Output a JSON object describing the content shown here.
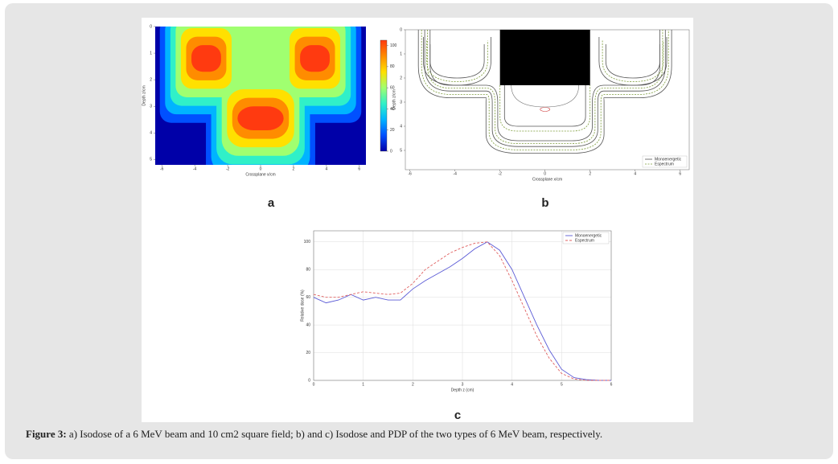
{
  "panel_a": {
    "label": "a",
    "chart_data": {
      "type": "heatmap",
      "x_label": "Crossplane x/cm",
      "y_label": "Depth z/cm",
      "xlim": [
        -6.4,
        6.4
      ],
      "xticks": [
        -6,
        -4,
        -2,
        0,
        2,
        4,
        6
      ],
      "ylim": [
        0,
        5.2
      ],
      "yticks": [
        0,
        1,
        2,
        3,
        4,
        5
      ],
      "colorbar_lim": [
        0,
        105
      ],
      "colorbar_ticks": [
        0,
        20,
        40,
        60,
        80,
        100
      ],
      "colormap": [
        "#0000a8",
        "#0050ff",
        "#00b4ff",
        "#30f0c8",
        "#a0ff70",
        "#ffe000",
        "#ff8c00",
        "#ff3a10"
      ]
    }
  },
  "panel_b": {
    "label": "b",
    "chart_data": {
      "type": "contour",
      "x_label": "Crossplane x/cm",
      "y_label": "Depth z/cm",
      "xlim": [
        -6.2,
        6.4
      ],
      "xticks": [
        -6,
        -4,
        -2,
        0,
        2,
        4,
        6
      ],
      "ylim": [
        0,
        5.8
      ],
      "yticks": [
        0,
        1,
        2,
        3,
        4,
        5
      ],
      "series": [
        {
          "name": "Monoenergetic",
          "color": "#555555"
        },
        {
          "name": "Espectrum",
          "color": "#7c9c3a"
        }
      ],
      "legend": "lower right"
    }
  },
  "panel_c": {
    "label": "c",
    "chart_data": {
      "type": "line",
      "x_label": "Depth z (cm)",
      "y_label": "Relative dose (%)",
      "x": [
        0,
        0.25,
        0.5,
        0.75,
        1,
        1.25,
        1.5,
        1.75,
        2,
        2.25,
        2.5,
        2.75,
        3,
        3.25,
        3.5,
        3.75,
        4,
        4.25,
        4.5,
        4.75,
        5,
        5.25,
        5.5,
        5.75,
        6
      ],
      "series": [
        {
          "name": "Monoenergetic",
          "color": "#5b5bd6",
          "values": [
            60,
            56,
            58,
            62,
            58,
            60,
            58,
            58,
            66,
            72,
            77,
            82,
            88,
            95,
            100,
            94,
            80,
            60,
            40,
            22,
            8,
            2,
            0.5,
            0,
            0
          ]
        },
        {
          "name": "Espectrum",
          "color": "#e06060",
          "values": [
            62,
            60,
            60,
            62,
            64,
            63,
            62,
            63,
            70,
            80,
            86,
            92,
            96,
            99,
            100,
            90,
            72,
            52,
            32,
            16,
            5,
            1,
            0,
            0,
            0
          ]
        }
      ],
      "xlim": [
        0,
        6
      ],
      "xticks": [
        0,
        1,
        2,
        3,
        4,
        5,
        6
      ],
      "ylim": [
        0,
        108
      ],
      "yticks": [
        0,
        20,
        40,
        60,
        80,
        100
      ],
      "grid": true,
      "legend": "upper right"
    }
  },
  "caption": {
    "lead": "Figure 3:",
    "text": "a) Isodose of a 6 MeV beam and 10 cm2 square field; b) and c) Isodose and PDP of the two types of 6 MeV beam, respectively."
  }
}
